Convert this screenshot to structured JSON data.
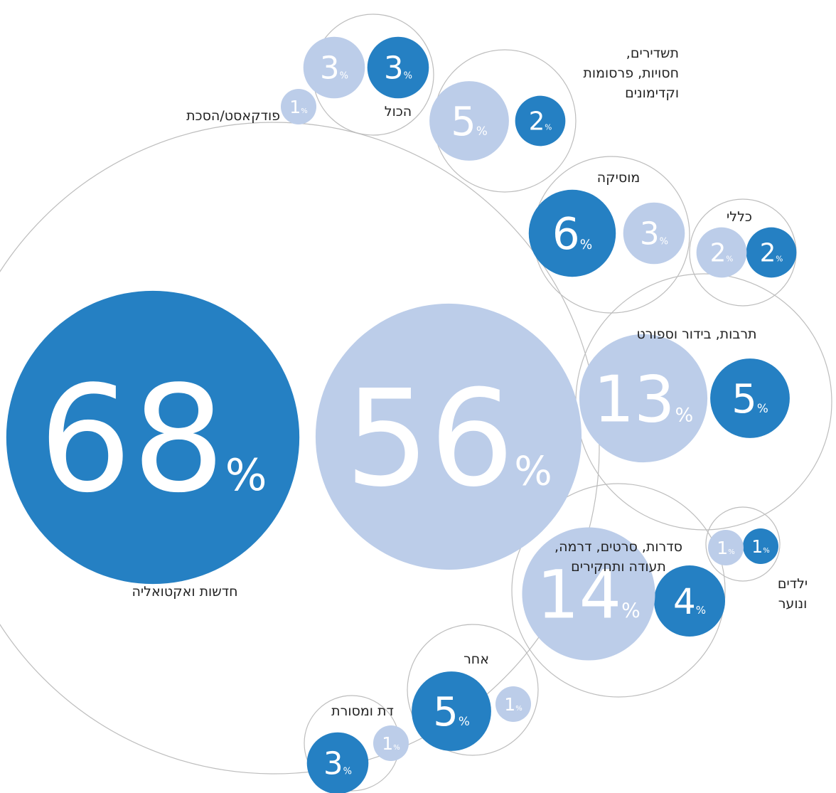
{
  "chart_data": {
    "type": "bubble",
    "unit": "%",
    "categories": [
      "חדשות ואקטואליה",
      "הכול",
      "פודקאסט/הסכת",
      "תשדירים,\nחסויות, פרסומות\nוקדימונים",
      "מוסיקה",
      "כללי",
      "תרבות, בידור וספורט",
      "ילדים ונוער",
      "סדרות, סרטים, דרמה,\nתעודה ותחקירים",
      "אחר",
      "דת ומסורת"
    ],
    "series": [
      {
        "color": "#2580c3",
        "values": [
          68,
          3,
          null,
          2,
          6,
          2,
          5,
          1,
          4,
          5,
          3
        ]
      },
      {
        "color": "#bccde9",
        "values": [
          56,
          3,
          1,
          5,
          3,
          2,
          13,
          1,
          14,
          1,
          1
        ]
      }
    ]
  }
}
